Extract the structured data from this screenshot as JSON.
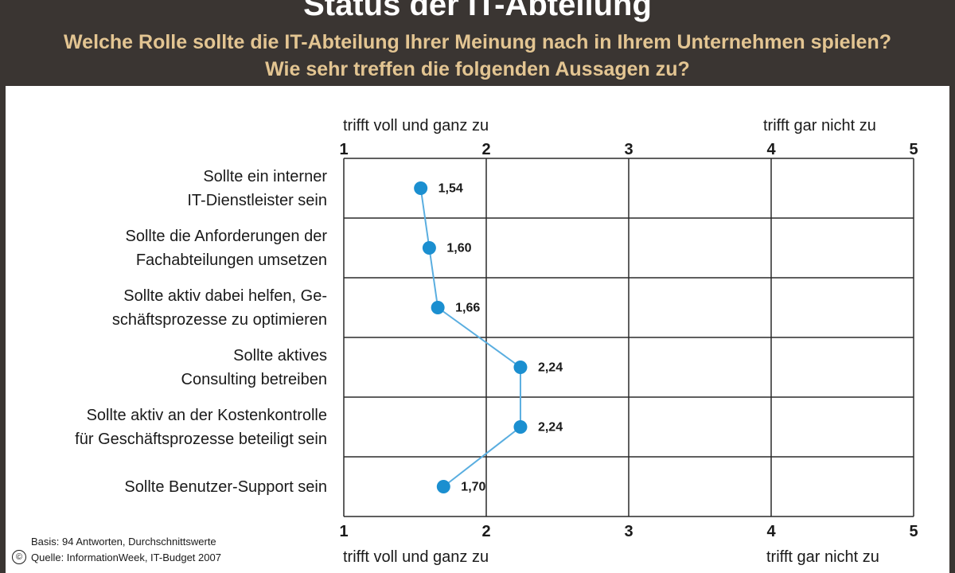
{
  "header": {
    "title": "Status der IT-Abteilung",
    "subtitle": "Welche Rolle sollte die IT-Abteilung Ihrer Meinung nach in Ihrem Unternehmen spielen? Wie sehr treffen die folgenden Aussagen zu?"
  },
  "colors": {
    "header_bg": "#3a3532",
    "title": "#ffffff",
    "subtitle": "#e3c592",
    "marker": "#1b8fd0",
    "line": "#5aaee0",
    "grid": "#2a2a2a"
  },
  "chart_data": {
    "type": "line",
    "orientation": "horizontal",
    "title": "Status der IT-Abteilung",
    "xlim": [
      1,
      5
    ],
    "xticks": [
      "1",
      "2",
      "3",
      "4",
      "5"
    ],
    "axis_caption_left": "trifft voll und ganz zu",
    "axis_caption_right": "trifft gar nicht zu",
    "grid": true,
    "categories": [
      "Sollte ein interner\nIT-Dienstleister sein",
      "Sollte die Anforderungen der\nFachabteilungen umsetzen",
      "Sollte aktiv dabei helfen, Ge-\nschäftsprozesse zu optimieren",
      "Sollte aktives\nConsulting betreiben",
      "Sollte aktiv an der Kostenkontrolle\nfür Geschäftsprozesse beteiligt sein",
      "Sollte Benutzer-Support sein"
    ],
    "values": [
      1.54,
      1.6,
      1.66,
      2.24,
      2.24,
      1.7
    ],
    "value_labels": [
      "1,54",
      "1,60",
      "1,66",
      "2,24",
      "2,24",
      "1,70"
    ]
  },
  "footer": {
    "basis": "Basis: 94 Antworten, Durchschnittswerte",
    "source": "Quelle: InformationWeek, IT-Budget 2007",
    "copyright_symbol": "©"
  }
}
